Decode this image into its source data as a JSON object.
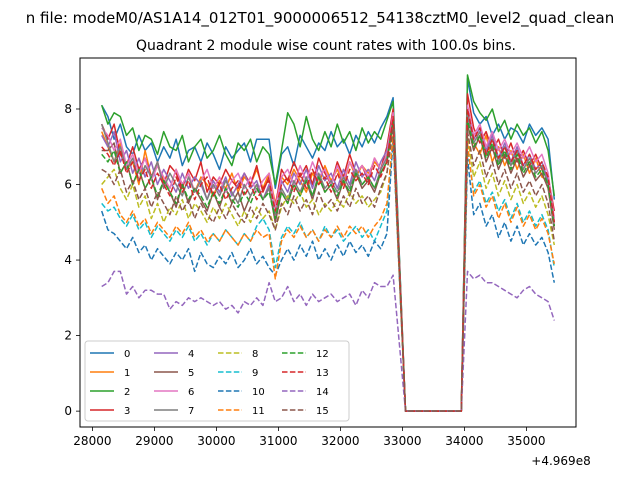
{
  "figure": {
    "suptitle": "n file: modeM0/AS1A14_012T01_9000006512_54138cztM0_level2_quad_clean",
    "title": "Quadrant 2 module wise count rates with 100.0s bins.",
    "x_offset_label": "+4.969e8"
  },
  "chart_data": {
    "type": "line",
    "title": "Quadrant 2 module wise count rates with 100.0s bins.",
    "xlabel": "",
    "ylabel": "",
    "x_offset": "+4.969e8",
    "xlim": [
      27800,
      35800
    ],
    "ylim": [
      -0.42,
      9.35
    ],
    "xticks": [
      28000,
      29000,
      30000,
      31000,
      32000,
      33000,
      34000,
      35000
    ],
    "yticks": [
      0,
      2,
      4,
      6,
      8
    ],
    "grid": false,
    "legend": {
      "placement": "lower-left",
      "columns": 4
    },
    "x": [
      28150,
      28250,
      28350,
      28450,
      28550,
      28650,
      28750,
      28850,
      28950,
      29050,
      29150,
      29250,
      29350,
      29450,
      29550,
      29650,
      29750,
      29850,
      29950,
      30050,
      30150,
      30250,
      30350,
      30450,
      30550,
      30650,
      30750,
      30850,
      30950,
      31050,
      31150,
      31250,
      31350,
      31450,
      31550,
      31650,
      31750,
      31850,
      31950,
      32050,
      32150,
      32250,
      32350,
      32450,
      32550,
      32650,
      32750,
      32850,
      32950,
      33050,
      33150,
      33250,
      33350,
      33450,
      33550,
      33650,
      33750,
      33850,
      33950,
      34050,
      34150,
      34250,
      34350,
      34450,
      34550,
      34650,
      34750,
      34850,
      34950,
      35050,
      35150,
      35250,
      35350,
      35450
    ],
    "off_start": 33050,
    "off_end": 33950,
    "gap_level": 0.0,
    "series": [
      {
        "name": "0",
        "color": "#1f77b4",
        "dash": "solid",
        "before": [
          8.1,
          7.8,
          7.2,
          7.6,
          7.0,
          6.8,
          7.3,
          6.9,
          7.1,
          6.6,
          7.0,
          6.7,
          7.2,
          6.5,
          6.9,
          7.0,
          6.6,
          7.1,
          6.8,
          6.4,
          7.0,
          6.7,
          6.9,
          7.1,
          6.6,
          7.2,
          7.2,
          7.2,
          5.9,
          6.8,
          7.0,
          6.5,
          7.3,
          7.0,
          6.7,
          7.1,
          6.9,
          7.4,
          7.0,
          7.2,
          6.8,
          7.3,
          7.0,
          7.4,
          7.1,
          7.5,
          7.8,
          8.3
        ],
        "after": [
          8.8,
          7.9,
          7.6,
          7.8,
          7.3,
          7.6,
          7.2,
          7.5,
          7.4,
          7.1,
          7.6,
          7.3,
          7.5,
          7.2,
          5.6
        ]
      },
      {
        "name": "1",
        "color": "#ff7f0e",
        "dash": "solid",
        "before": [
          7.4,
          7.0,
          6.6,
          7.1,
          6.4,
          6.6,
          6.0,
          6.9,
          6.2,
          6.5,
          6.1,
          5.9,
          6.4,
          6.0,
          6.3,
          5.8,
          6.2,
          6.0,
          5.7,
          6.1,
          5.9,
          6.3,
          5.8,
          6.2,
          6.0,
          6.4,
          5.9,
          6.3,
          5.5,
          6.2,
          6.0,
          6.4,
          6.1,
          5.8,
          6.3,
          6.0,
          6.5,
          6.1,
          6.4,
          6.0,
          6.6,
          6.2,
          6.5,
          6.3,
          6.6,
          6.4,
          6.8,
          7.9
        ],
        "after": [
          8.0,
          7.1,
          6.8,
          7.3,
          6.6,
          7.0,
          6.5,
          6.9,
          6.4,
          6.8,
          6.3,
          6.7,
          6.2,
          6.1,
          4.9
        ]
      },
      {
        "name": "2",
        "color": "#2ca02c",
        "dash": "solid",
        "before": [
          8.1,
          7.6,
          7.9,
          7.8,
          7.3,
          7.5,
          6.9,
          7.3,
          7.2,
          6.8,
          7.4,
          7.0,
          6.9,
          7.3,
          6.6,
          7.0,
          7.2,
          6.7,
          6.9,
          7.3,
          6.8,
          6.5,
          7.1,
          6.9,
          7.2,
          6.6,
          7.0,
          6.8,
          6.0,
          6.9,
          7.9,
          7.6,
          7.0,
          7.8,
          7.2,
          6.9,
          7.4,
          7.0,
          7.6,
          7.1,
          7.4,
          6.9,
          7.5,
          7.1,
          7.4,
          7.2,
          7.7,
          8.2
        ],
        "after": [
          8.9,
          8.2,
          7.9,
          7.7,
          8.0,
          7.4,
          7.7,
          7.2,
          7.6,
          7.3,
          7.5,
          7.1,
          7.4,
          6.9,
          5.7
        ]
      },
      {
        "name": "3",
        "color": "#d62728",
        "dash": "solid",
        "before": [
          7.6,
          7.2,
          7.6,
          6.8,
          6.5,
          7.0,
          6.4,
          6.7,
          6.2,
          6.6,
          6.0,
          6.5,
          6.3,
          5.9,
          6.4,
          6.1,
          6.6,
          5.8,
          6.2,
          6.0,
          6.4,
          6.1,
          5.9,
          6.3,
          6.0,
          6.5,
          5.8,
          6.2,
          5.4,
          6.4,
          6.1,
          6.6,
          6.2,
          6.5,
          6.0,
          6.7,
          6.3,
          6.0,
          6.6,
          6.2,
          6.8,
          6.3,
          6.5,
          6.1,
          6.7,
          6.4,
          7.0,
          8.0
        ],
        "after": [
          8.4,
          7.5,
          7.1,
          7.4,
          6.9,
          7.2,
          6.7,
          7.1,
          6.6,
          6.9,
          6.5,
          6.8,
          6.4,
          6.2,
          5.3
        ]
      },
      {
        "name": "4",
        "color": "#9467bd",
        "dash": "solid",
        "before": [
          7.3,
          7.0,
          7.4,
          6.6,
          6.9,
          6.3,
          6.7,
          6.2,
          6.6,
          6.0,
          6.4,
          6.1,
          5.8,
          6.3,
          5.9,
          6.2,
          6.0,
          5.6,
          6.1,
          5.8,
          6.2,
          5.7,
          6.0,
          6.3,
          5.9,
          6.1,
          5.6,
          6.0,
          5.0,
          6.1,
          5.8,
          6.3,
          6.0,
          6.4,
          5.9,
          6.5,
          6.1,
          6.3,
          5.9,
          6.4,
          6.0,
          6.6,
          6.2,
          6.4,
          6.1,
          6.6,
          6.9,
          7.8
        ],
        "after": [
          7.8,
          7.2,
          7.5,
          6.9,
          7.3,
          6.7,
          7.1,
          6.6,
          7.0,
          6.5,
          6.8,
          6.4,
          6.6,
          6.1,
          5.0
        ]
      },
      {
        "name": "5",
        "color": "#8c564b",
        "dash": "solid",
        "before": [
          6.9,
          6.9,
          7.1,
          6.3,
          6.6,
          6.0,
          6.4,
          5.9,
          6.2,
          5.6,
          6.1,
          5.8,
          5.4,
          6.0,
          5.5,
          5.9,
          5.6,
          5.3,
          5.8,
          5.4,
          5.9,
          5.5,
          5.8,
          5.3,
          5.7,
          6.0,
          5.6,
          5.9,
          5.0,
          5.8,
          5.5,
          6.0,
          5.7,
          6.1,
          5.6,
          6.2,
          5.8,
          6.0,
          5.6,
          6.1,
          5.7,
          6.3,
          5.9,
          6.1,
          5.8,
          6.3,
          6.6,
          7.6
        ],
        "after": [
          7.6,
          6.9,
          7.3,
          6.6,
          7.0,
          6.4,
          6.8,
          6.3,
          6.7,
          6.2,
          6.5,
          6.1,
          6.3,
          5.9,
          4.8
        ]
      },
      {
        "name": "6",
        "color": "#e377c2",
        "dash": "solid",
        "before": [
          7.5,
          7.3,
          6.9,
          7.2,
          6.5,
          6.8,
          6.3,
          6.7,
          6.1,
          6.5,
          6.2,
          5.9,
          6.4,
          6.0,
          6.3,
          5.8,
          6.1,
          6.4,
          5.9,
          6.2,
          5.8,
          6.1,
          6.3,
          5.9,
          6.2,
          5.8,
          6.1,
          6.3,
          5.4,
          6.2,
          6.4,
          6.0,
          6.5,
          6.1,
          6.6,
          6.2,
          6.4,
          6.0,
          6.5,
          6.1,
          6.6,
          6.3,
          6.5,
          6.2,
          6.7,
          6.4,
          6.8,
          7.9
        ],
        "after": [
          8.1,
          7.3,
          7.6,
          7.0,
          7.4,
          6.9,
          7.2,
          6.8,
          7.1,
          6.7,
          7.0,
          6.6,
          6.8,
          6.3,
          5.1
        ]
      },
      {
        "name": "7",
        "color": "#7f7f7f",
        "dash": "solid",
        "before": [
          7.6,
          7.1,
          6.6,
          7.0,
          6.4,
          6.7,
          6.1,
          6.5,
          6.2,
          6.6,
          5.9,
          6.3,
          6.0,
          5.7,
          6.2,
          5.8,
          6.1,
          5.6,
          6.0,
          5.7,
          6.1,
          5.8,
          5.5,
          6.0,
          5.7,
          6.0,
          5.6,
          5.9,
          5.2,
          5.9,
          5.6,
          6.1,
          5.8,
          6.2,
          5.7,
          6.3,
          5.9,
          6.1,
          5.8,
          6.2,
          5.9,
          6.4,
          6.0,
          6.2,
          5.9,
          6.4,
          6.7,
          7.7
        ],
        "after": [
          7.9,
          7.1,
          7.4,
          6.8,
          7.2,
          6.6,
          7.0,
          6.5,
          6.9,
          6.4,
          6.7,
          6.3,
          6.5,
          6.0,
          4.9
        ]
      },
      {
        "name": "8",
        "color": "#bcbd22",
        "dash": "dashed",
        "before": [
          6.0,
          6.2,
          6.4,
          5.9,
          5.6,
          6.0,
          5.4,
          5.7,
          5.1,
          5.5,
          5.0,
          5.4,
          5.2,
          5.6,
          5.1,
          5.5,
          5.3,
          5.0,
          5.4,
          5.1,
          5.5,
          5.2,
          4.9,
          5.3,
          5.0,
          5.4,
          5.1,
          5.3,
          4.8,
          5.4,
          5.7,
          5.5,
          5.8,
          5.4,
          5.6,
          5.2,
          5.5,
          5.3,
          5.6,
          5.4,
          5.8,
          5.5,
          5.7,
          5.4,
          5.6,
          5.8,
          6.3,
          7.5
        ],
        "after": [
          7.3,
          6.2,
          6.6,
          5.9,
          6.3,
          5.7,
          6.1,
          5.6,
          6.0,
          5.5,
          5.8,
          5.4,
          5.7,
          5.2,
          4.4
        ]
      },
      {
        "name": "9",
        "color": "#17becf",
        "dash": "dashed",
        "before": [
          5.5,
          5.3,
          5.4,
          5.1,
          4.9,
          5.2,
          4.8,
          5.0,
          4.6,
          4.9,
          4.7,
          4.5,
          4.8,
          4.6,
          4.9,
          4.5,
          4.7,
          4.4,
          4.7,
          4.5,
          4.8,
          4.6,
          4.4,
          4.7,
          4.5,
          4.9,
          5.1,
          4.8,
          3.8,
          4.6,
          4.9,
          4.7,
          5.0,
          4.6,
          4.8,
          4.5,
          4.9,
          4.6,
          4.8,
          4.5,
          4.7,
          4.9,
          4.6,
          4.8,
          4.5,
          4.9,
          5.3,
          7.3
        ],
        "after": [
          7.0,
          5.8,
          6.1,
          5.5,
          5.8,
          5.3,
          5.6,
          5.1,
          5.5,
          5.0,
          5.3,
          4.9,
          5.2,
          4.8,
          3.8
        ]
      },
      {
        "name": "10",
        "color": "#1f77b4",
        "dash": "dashed",
        "before": [
          5.3,
          4.8,
          4.7,
          4.5,
          4.3,
          4.6,
          4.2,
          4.4,
          4.0,
          4.3,
          4.1,
          3.9,
          4.2,
          4.0,
          4.3,
          3.7,
          4.2,
          3.9,
          3.8,
          4.1,
          3.9,
          4.2,
          3.8,
          4.0,
          4.3,
          3.9,
          4.1,
          3.8,
          3.6,
          4.0,
          4.3,
          4.0,
          4.4,
          4.1,
          4.5,
          4.0,
          4.3,
          4.0,
          4.4,
          4.1,
          4.5,
          4.2,
          4.4,
          4.1,
          4.5,
          4.3,
          4.7,
          7.2
        ],
        "after": [
          6.7,
          5.2,
          5.5,
          4.9,
          5.2,
          4.6,
          5.0,
          4.5,
          4.9,
          4.4,
          4.7,
          4.4,
          4.6,
          4.2,
          3.4
        ]
      },
      {
        "name": "11",
        "color": "#ff7f0e",
        "dash": "dashed",
        "before": [
          5.9,
          5.5,
          5.7,
          5.2,
          5.0,
          5.3,
          4.9,
          5.1,
          4.7,
          5.0,
          4.8,
          4.6,
          4.9,
          4.7,
          5.0,
          4.6,
          4.8,
          4.5,
          4.7,
          4.5,
          4.8,
          4.6,
          4.4,
          4.7,
          4.5,
          4.8,
          4.6,
          4.7,
          3.5,
          4.5,
          4.8,
          4.6,
          4.9,
          4.6,
          4.8,
          4.5,
          4.8,
          4.6,
          4.9,
          4.6,
          4.9,
          4.7,
          4.9,
          4.6,
          4.9,
          5.1,
          5.5,
          7.3
        ],
        "after": [
          7.1,
          5.7,
          6.0,
          5.4,
          5.7,
          5.1,
          5.5,
          5.0,
          5.4,
          4.9,
          5.2,
          4.8,
          5.1,
          4.7,
          3.9
        ]
      },
      {
        "name": "12",
        "color": "#2ca02c",
        "dash": "dashed",
        "before": [
          6.8,
          6.6,
          6.9,
          6.3,
          6.6,
          6.0,
          6.4,
          5.9,
          6.2,
          5.7,
          6.1,
          5.8,
          5.5,
          6.0,
          5.6,
          5.9,
          5.7,
          5.4,
          5.8,
          5.5,
          5.9,
          5.6,
          5.4,
          5.8,
          5.5,
          5.9,
          5.6,
          5.8,
          5.1,
          5.8,
          5.5,
          6.0,
          5.7,
          6.1,
          5.7,
          6.2,
          5.8,
          6.0,
          5.7,
          6.1,
          5.8,
          6.3,
          6.0,
          6.2,
          5.9,
          6.3,
          6.6,
          7.7
        ],
        "after": [
          7.7,
          7.0,
          7.3,
          6.7,
          7.1,
          6.5,
          6.9,
          6.4,
          6.8,
          6.3,
          6.6,
          6.2,
          6.4,
          6.0,
          4.9
        ]
      },
      {
        "name": "13",
        "color": "#d62728",
        "dash": "dashed",
        "before": [
          7.0,
          6.8,
          6.5,
          6.9,
          6.3,
          6.6,
          6.1,
          6.4,
          5.9,
          6.3,
          6.0,
          5.7,
          6.2,
          5.8,
          6.1,
          5.6,
          6.0,
          6.2,
          5.7,
          6.0,
          5.6,
          5.9,
          6.1,
          5.7,
          6.0,
          5.6,
          5.9,
          6.1,
          5.3,
          6.0,
          6.2,
          5.8,
          6.3,
          5.9,
          6.4,
          6.0,
          6.2,
          5.8,
          6.3,
          5.9,
          6.4,
          6.1,
          6.3,
          6.0,
          6.5,
          6.2,
          6.6,
          7.8
        ],
        "after": [
          8.0,
          7.2,
          7.5,
          6.8,
          7.2,
          6.7,
          7.0,
          6.6,
          6.9,
          6.5,
          6.8,
          6.4,
          6.6,
          6.2,
          5.0
        ]
      },
      {
        "name": "14",
        "color": "#9467bd",
        "dash": "dashed",
        "before": [
          3.3,
          3.4,
          3.7,
          3.7,
          3.1,
          3.3,
          3.0,
          3.2,
          3.2,
          3.1,
          3.1,
          2.7,
          2.9,
          2.8,
          3.0,
          2.9,
          3.0,
          2.9,
          2.8,
          2.9,
          2.7,
          2.8,
          2.6,
          2.9,
          2.8,
          3.0,
          2.8,
          3.4,
          2.9,
          3.0,
          3.3,
          2.9,
          3.1,
          2.8,
          3.1,
          2.9,
          3.0,
          3.1,
          2.9,
          3.0,
          3.1,
          2.8,
          3.2,
          3.0,
          3.4,
          3.3,
          3.3,
          3.6
        ],
        "after": [
          3.7,
          3.5,
          3.6,
          3.4,
          3.4,
          3.3,
          3.2,
          3.1,
          3.0,
          3.2,
          3.3,
          3.1,
          3.0,
          2.9,
          2.4
        ]
      },
      {
        "name": "15",
        "color": "#8c564b",
        "dash": "dashed",
        "before": [
          6.4,
          6.3,
          6.0,
          6.4,
          5.8,
          6.1,
          5.6,
          5.9,
          5.4,
          5.8,
          5.5,
          5.2,
          5.7,
          5.3,
          5.6,
          5.1,
          5.5,
          5.2,
          5.0,
          5.4,
          5.1,
          5.5,
          5.2,
          5.0,
          5.4,
          5.1,
          5.5,
          5.2,
          4.8,
          5.5,
          5.2,
          5.7,
          5.3,
          5.6,
          5.2,
          5.8,
          5.4,
          5.6,
          5.3,
          5.7,
          5.4,
          5.9,
          5.5,
          5.7,
          5.4,
          5.9,
          6.3,
          7.5
        ],
        "after": [
          7.4,
          6.5,
          6.9,
          6.2,
          6.6,
          6.0,
          6.4,
          5.9,
          6.3,
          5.8,
          6.1,
          5.7,
          6.0,
          5.5,
          4.5
        ]
      }
    ]
  }
}
